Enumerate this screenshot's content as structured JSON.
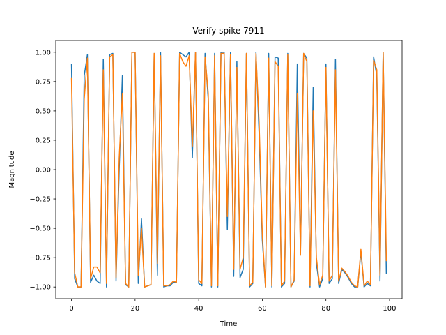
{
  "chart_data": {
    "type": "line",
    "title": "Verify spike 7911",
    "x_label": "Time",
    "y_label": "Magnitude",
    "x": [
      0,
      1,
      2,
      3,
      4,
      5,
      6,
      7,
      8,
      9,
      10,
      11,
      12,
      13,
      14,
      15,
      16,
      17,
      18,
      19,
      20,
      21,
      22,
      23,
      24,
      25,
      26,
      27,
      28,
      29,
      30,
      31,
      32,
      33,
      34,
      35,
      36,
      37,
      38,
      39,
      40,
      41,
      42,
      43,
      44,
      45,
      46,
      47,
      48,
      49,
      50,
      51,
      52,
      53,
      54,
      55,
      56,
      57,
      58,
      59,
      60,
      61,
      62,
      63,
      64,
      65,
      66,
      67,
      68,
      69,
      70,
      71,
      72,
      73,
      74,
      75,
      76,
      77,
      78,
      79,
      80,
      81,
      82,
      83,
      84,
      85,
      86,
      87,
      88,
      89,
      90,
      91,
      92,
      93,
      94,
      95,
      96,
      97,
      98,
      99
    ],
    "series": [
      {
        "color": "#1f77b4",
        "values": [
          0.9,
          -0.93,
          -1.0,
          -1.0,
          0.8,
          0.98,
          -0.96,
          -0.9,
          -0.95,
          -0.97,
          0.94,
          -1.0,
          0.98,
          0.99,
          -0.95,
          0.0,
          0.8,
          -0.98,
          -1.0,
          1.0,
          1.0,
          -0.97,
          -0.42,
          -1.0,
          -0.99,
          -0.98,
          0.99,
          -0.9,
          1.0,
          -1.0,
          -0.99,
          -0.99,
          -0.96,
          -0.96,
          1.0,
          0.98,
          0.96,
          1.0,
          0.1,
          1.0,
          -0.97,
          -0.99,
          0.99,
          0.6,
          -1.0,
          0.99,
          -1.0,
          1.0,
          1.0,
          -0.51,
          1.0,
          -0.91,
          0.92,
          -0.92,
          -0.85,
          0.99,
          -1.0,
          -0.97,
          1.0,
          0.3,
          -0.6,
          -1.0,
          0.99,
          -1.0,
          0.96,
          0.95,
          -1.0,
          -0.97,
          0.99,
          -1.0,
          -0.95,
          0.9,
          -0.7,
          0.99,
          0.95,
          -1.0,
          0.7,
          -0.8,
          -1.0,
          -0.93,
          0.9,
          -0.97,
          -0.93,
          0.94,
          -0.97,
          -0.85,
          -0.88,
          -0.92,
          -0.97,
          -1.0,
          -1.0,
          -0.7,
          -1.0,
          -0.97,
          -0.99,
          0.96,
          0.8,
          -0.95,
          1.0,
          -0.89
        ]
      },
      {
        "color": "#ff7f0e",
        "values": [
          0.78,
          -0.88,
          -1.0,
          -1.0,
          0.6,
          0.95,
          -0.93,
          -0.83,
          -0.83,
          -0.88,
          0.85,
          -0.97,
          0.96,
          0.98,
          -0.92,
          0.1,
          0.65,
          -0.97,
          -1.0,
          1.0,
          1.0,
          -0.9,
          -0.5,
          -1.0,
          -0.99,
          -0.98,
          0.99,
          -0.8,
          0.97,
          -0.99,
          -0.99,
          -0.98,
          -0.95,
          -0.96,
          0.99,
          0.92,
          0.88,
          0.97,
          0.2,
          1.0,
          -0.94,
          -0.97,
          0.96,
          0.65,
          -0.99,
          0.97,
          -0.99,
          0.99,
          0.99,
          -0.4,
          0.98,
          -0.85,
          0.87,
          -0.85,
          -0.75,
          0.99,
          -0.99,
          -0.96,
          0.99,
          0.4,
          -0.55,
          -1.0,
          0.95,
          -0.99,
          0.92,
          0.88,
          -0.99,
          -0.95,
          0.98,
          -1.0,
          -0.94,
          0.65,
          -0.73,
          0.99,
          0.92,
          -0.99,
          0.5,
          -0.75,
          -0.98,
          -0.9,
          0.87,
          -0.95,
          -0.9,
          0.85,
          -0.95,
          -0.84,
          -0.87,
          -0.91,
          -0.96,
          -0.99,
          -1.0,
          -0.68,
          -0.99,
          -0.95,
          -0.98,
          0.93,
          0.85,
          -0.9,
          1.0,
          -0.78
        ]
      }
    ],
    "xlim": [
      -4.95,
      103.95
    ],
    "xticks": [
      0,
      20,
      40,
      60,
      80,
      100
    ],
    "ylim": [
      -1.1,
      1.1
    ],
    "yticks": [
      {
        "value": -1,
        "label": "−1.00"
      },
      {
        "value": -0.75,
        "label": "−0.75"
      },
      {
        "value": -0.5,
        "label": "−0.50"
      },
      {
        "value": -0.25,
        "label": "−0.25"
      },
      {
        "value": 0,
        "label": "0.00"
      },
      {
        "value": 0.25,
        "label": "0.25"
      },
      {
        "value": 0.5,
        "label": "0.50"
      },
      {
        "value": 0.75,
        "label": "0.75"
      },
      {
        "value": 1,
        "label": "1.00"
      }
    ]
  }
}
